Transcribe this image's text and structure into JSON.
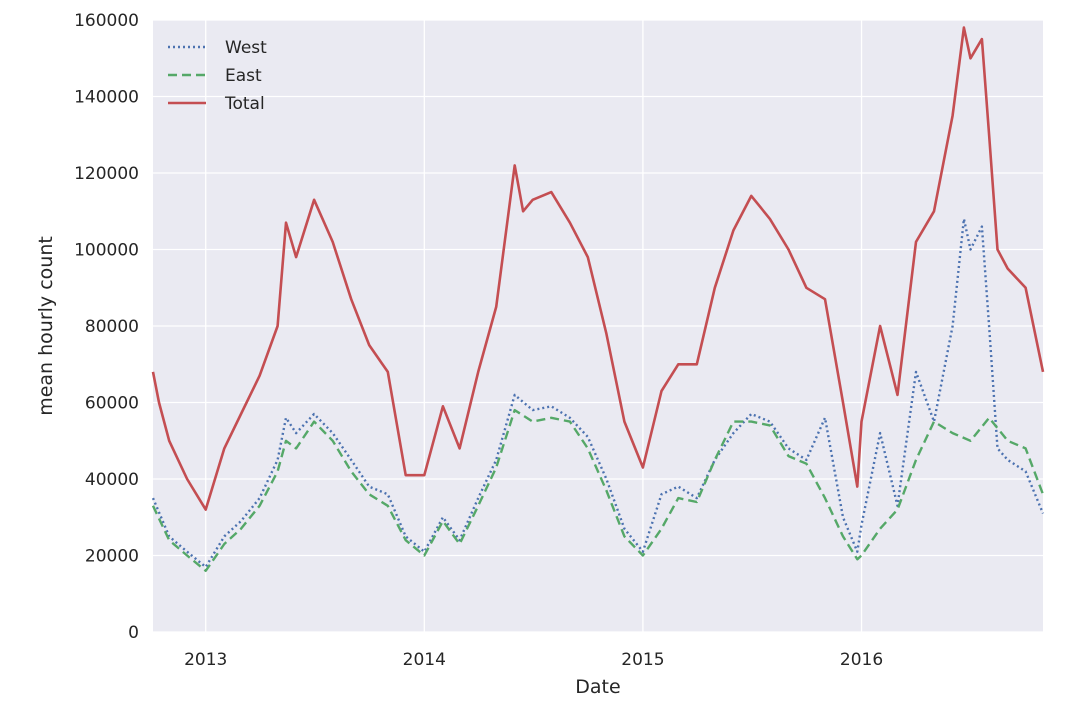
{
  "chart_data": {
    "type": "line",
    "title": "",
    "xlabel": "Date",
    "ylabel": "mean hourly count",
    "xlim": [
      "2012-10-05",
      "2016-10-30"
    ],
    "ylim": [
      0,
      160000
    ],
    "x_ticks": [
      {
        "date": "2013-01-01",
        "label": "2013"
      },
      {
        "date": "2014-01-01",
        "label": "2014"
      },
      {
        "date": "2015-01-01",
        "label": "2015"
      },
      {
        "date": "2016-01-01",
        "label": "2016"
      }
    ],
    "y_ticks": [
      {
        "value": 0,
        "label": "0"
      },
      {
        "value": 20000,
        "label": "20000"
      },
      {
        "value": 40000,
        "label": "40000"
      },
      {
        "value": 60000,
        "label": "60000"
      },
      {
        "value": 80000,
        "label": "80000"
      },
      {
        "value": 100000,
        "label": "100000"
      },
      {
        "value": 120000,
        "label": "120000"
      },
      {
        "value": 140000,
        "label": "140000"
      },
      {
        "value": 160000,
        "label": "160000"
      }
    ],
    "grid": true,
    "legend_position": "top-left",
    "series": [
      {
        "name": "West",
        "style": "dotted",
        "color": "#4c72b0",
        "points": [
          [
            "2012-10-05",
            35000
          ],
          [
            "2012-11-01",
            25000
          ],
          [
            "2012-12-01",
            21000
          ],
          [
            "2013-01-01",
            17000
          ],
          [
            "2013-02-01",
            25000
          ],
          [
            "2013-03-01",
            29000
          ],
          [
            "2013-04-01",
            35000
          ],
          [
            "2013-05-01",
            45000
          ],
          [
            "2013-05-15",
            56000
          ],
          [
            "2013-06-01",
            52000
          ],
          [
            "2013-07-01",
            57000
          ],
          [
            "2013-08-01",
            52000
          ],
          [
            "2013-09-01",
            45000
          ],
          [
            "2013-10-01",
            38000
          ],
          [
            "2013-11-01",
            36000
          ],
          [
            "2013-12-01",
            25000
          ],
          [
            "2014-01-01",
            21000
          ],
          [
            "2014-02-01",
            30000
          ],
          [
            "2014-03-01",
            24000
          ],
          [
            "2014-04-01",
            35000
          ],
          [
            "2014-05-01",
            45000
          ],
          [
            "2014-06-01",
            62000
          ],
          [
            "2014-07-01",
            58000
          ],
          [
            "2014-08-01",
            59000
          ],
          [
            "2014-09-01",
            56000
          ],
          [
            "2014-10-01",
            51000
          ],
          [
            "2014-11-01",
            40000
          ],
          [
            "2014-12-01",
            27000
          ],
          [
            "2015-01-01",
            21000
          ],
          [
            "2015-02-01",
            36000
          ],
          [
            "2015-03-01",
            38000
          ],
          [
            "2015-04-01",
            35000
          ],
          [
            "2015-05-01",
            45000
          ],
          [
            "2015-06-01",
            52000
          ],
          [
            "2015-07-01",
            57000
          ],
          [
            "2015-08-01",
            55000
          ],
          [
            "2015-09-01",
            48000
          ],
          [
            "2015-10-01",
            45000
          ],
          [
            "2015-11-01",
            56000
          ],
          [
            "2015-12-01",
            30000
          ],
          [
            "2015-12-25",
            21000
          ],
          [
            "2016-01-01",
            28000
          ],
          [
            "2016-02-01",
            52000
          ],
          [
            "2016-03-01",
            33000
          ],
          [
            "2016-04-01",
            68000
          ],
          [
            "2016-05-01",
            55000
          ],
          [
            "2016-06-01",
            80000
          ],
          [
            "2016-06-20",
            108000
          ],
          [
            "2016-07-01",
            100000
          ],
          [
            "2016-07-20",
            106000
          ],
          [
            "2016-08-01",
            80000
          ],
          [
            "2016-08-15",
            48000
          ],
          [
            "2016-09-01",
            45000
          ],
          [
            "2016-10-01",
            42000
          ],
          [
            "2016-10-30",
            31000
          ]
        ]
      },
      {
        "name": "East",
        "style": "dashed",
        "color": "#55a868",
        "points": [
          [
            "2012-10-05",
            33000
          ],
          [
            "2012-11-01",
            24000
          ],
          [
            "2012-12-01",
            20000
          ],
          [
            "2013-01-01",
            16000
          ],
          [
            "2013-02-01",
            23000
          ],
          [
            "2013-03-01",
            27000
          ],
          [
            "2013-04-01",
            33000
          ],
          [
            "2013-05-01",
            42000
          ],
          [
            "2013-05-15",
            50000
          ],
          [
            "2013-06-01",
            48000
          ],
          [
            "2013-07-01",
            55000
          ],
          [
            "2013-08-01",
            50000
          ],
          [
            "2013-09-01",
            42000
          ],
          [
            "2013-10-01",
            36000
          ],
          [
            "2013-11-01",
            33000
          ],
          [
            "2013-12-01",
            24000
          ],
          [
            "2014-01-01",
            20000
          ],
          [
            "2014-02-01",
            29000
          ],
          [
            "2014-03-01",
            23000
          ],
          [
            "2014-04-01",
            33000
          ],
          [
            "2014-05-01",
            43000
          ],
          [
            "2014-06-01",
            58000
          ],
          [
            "2014-07-01",
            55000
          ],
          [
            "2014-08-01",
            56000
          ],
          [
            "2014-09-01",
            55000
          ],
          [
            "2014-10-01",
            48000
          ],
          [
            "2014-11-01",
            37000
          ],
          [
            "2014-12-01",
            25000
          ],
          [
            "2015-01-01",
            20000
          ],
          [
            "2015-02-01",
            27000
          ],
          [
            "2015-03-01",
            35000
          ],
          [
            "2015-04-01",
            34000
          ],
          [
            "2015-05-01",
            45000
          ],
          [
            "2015-06-01",
            55000
          ],
          [
            "2015-07-01",
            55000
          ],
          [
            "2015-08-01",
            54000
          ],
          [
            "2015-09-01",
            46000
          ],
          [
            "2015-10-01",
            44000
          ],
          [
            "2015-11-01",
            35000
          ],
          [
            "2015-12-01",
            25000
          ],
          [
            "2015-12-25",
            19000
          ],
          [
            "2016-01-01",
            20000
          ],
          [
            "2016-02-01",
            27000
          ],
          [
            "2016-03-01",
            32000
          ],
          [
            "2016-04-01",
            45000
          ],
          [
            "2016-05-01",
            55000
          ],
          [
            "2016-06-01",
            52000
          ],
          [
            "2016-07-01",
            50000
          ],
          [
            "2016-08-01",
            56000
          ],
          [
            "2016-09-01",
            50000
          ],
          [
            "2016-10-01",
            48000
          ],
          [
            "2016-10-30",
            36000
          ]
        ]
      },
      {
        "name": "Total",
        "style": "solid",
        "color": "#c44e52",
        "points": [
          [
            "2012-10-05",
            68000
          ],
          [
            "2012-10-15",
            60000
          ],
          [
            "2012-11-01",
            50000
          ],
          [
            "2012-12-01",
            40000
          ],
          [
            "2013-01-01",
            32000
          ],
          [
            "2013-02-01",
            48000
          ],
          [
            "2013-03-01",
            57000
          ],
          [
            "2013-04-01",
            67000
          ],
          [
            "2013-05-01",
            80000
          ],
          [
            "2013-05-15",
            107000
          ],
          [
            "2013-06-01",
            98000
          ],
          [
            "2013-07-01",
            113000
          ],
          [
            "2013-08-01",
            102000
          ],
          [
            "2013-09-01",
            87000
          ],
          [
            "2013-10-01",
            75000
          ],
          [
            "2013-11-01",
            68000
          ],
          [
            "2013-12-01",
            41000
          ],
          [
            "2014-01-01",
            41000
          ],
          [
            "2014-02-01",
            59000
          ],
          [
            "2014-03-01",
            48000
          ],
          [
            "2014-04-01",
            68000
          ],
          [
            "2014-05-01",
            85000
          ],
          [
            "2014-06-01",
            122000
          ],
          [
            "2014-06-15",
            110000
          ],
          [
            "2014-07-01",
            113000
          ],
          [
            "2014-08-01",
            115000
          ],
          [
            "2014-09-01",
            107000
          ],
          [
            "2014-10-01",
            98000
          ],
          [
            "2014-11-01",
            78000
          ],
          [
            "2014-12-01",
            55000
          ],
          [
            "2015-01-01",
            43000
          ],
          [
            "2015-02-01",
            63000
          ],
          [
            "2015-03-01",
            70000
          ],
          [
            "2015-04-01",
            70000
          ],
          [
            "2015-05-01",
            90000
          ],
          [
            "2015-06-01",
            105000
          ],
          [
            "2015-07-01",
            114000
          ],
          [
            "2015-08-01",
            108000
          ],
          [
            "2015-09-01",
            100000
          ],
          [
            "2015-10-01",
            90000
          ],
          [
            "2015-11-01",
            87000
          ],
          [
            "2015-12-01",
            60000
          ],
          [
            "2015-12-25",
            38000
          ],
          [
            "2016-01-01",
            55000
          ],
          [
            "2016-02-01",
            80000
          ],
          [
            "2016-03-01",
            62000
          ],
          [
            "2016-04-01",
            102000
          ],
          [
            "2016-05-01",
            110000
          ],
          [
            "2016-06-01",
            135000
          ],
          [
            "2016-06-20",
            158000
          ],
          [
            "2016-07-01",
            150000
          ],
          [
            "2016-07-20",
            155000
          ],
          [
            "2016-08-01",
            130000
          ],
          [
            "2016-08-15",
            100000
          ],
          [
            "2016-09-01",
            95000
          ],
          [
            "2016-10-01",
            90000
          ],
          [
            "2016-10-30",
            68000
          ]
        ]
      }
    ]
  }
}
